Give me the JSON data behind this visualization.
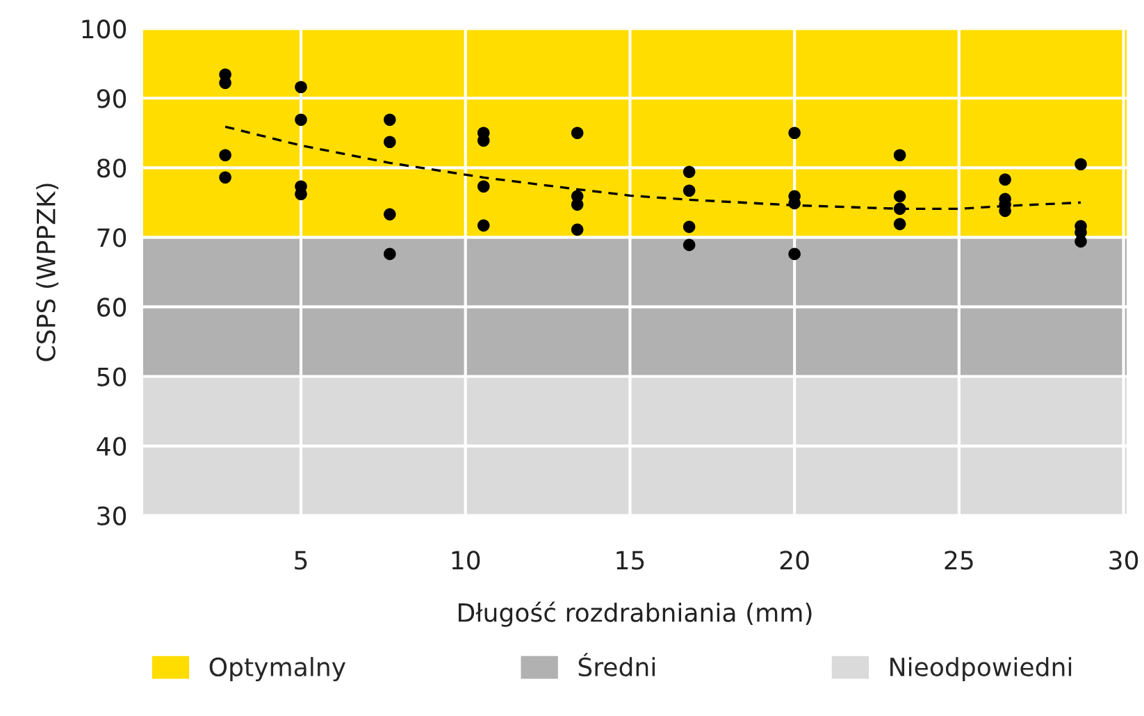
{
  "chart_data": {
    "type": "scatter",
    "xlabel": "Długość rozdrabniania (mm)",
    "ylabel": "CSPS (WPPZK)",
    "xlim": [
      0.2,
      30.1
    ],
    "xticks": [
      5,
      10,
      15,
      20,
      25,
      30
    ],
    "ylim": [
      30,
      100
    ],
    "yticks": [
      30,
      40,
      50,
      60,
      70,
      80,
      90,
      100
    ],
    "grid": true,
    "legend": "bottom",
    "marker": "circle",
    "bands": [
      {
        "axis": "y",
        "from": 70,
        "to": 100,
        "label": "Optymalny",
        "color": "#ffdd00"
      },
      {
        "axis": "y",
        "from": 50,
        "to": 70,
        "label": "Średni",
        "color": "#b1b1b1"
      },
      {
        "axis": "y",
        "from": 30,
        "to": 50,
        "label": "Nieodpowiedni",
        "color": "#dadada"
      }
    ],
    "series": [
      {
        "color": "#000000",
        "x": [
          2.7,
          2.7,
          2.7,
          2.7,
          5.0,
          5.0,
          5.0,
          5.0,
          7.7,
          7.7,
          7.7,
          7.7,
          10.55,
          10.55,
          10.55,
          10.55,
          13.4,
          13.4,
          13.4,
          13.4,
          16.8,
          16.8,
          16.8,
          16.8,
          20.0,
          20.0,
          20.0,
          20.0,
          23.2,
          23.2,
          23.2,
          23.2,
          26.4,
          26.4,
          26.4,
          26.4,
          28.7,
          28.7,
          28.7,
          28.7
        ],
        "values": [
          93.4,
          92.2,
          81.8,
          78.6,
          91.6,
          86.9,
          77.3,
          76.2,
          86.9,
          83.7,
          73.3,
          67.6,
          85.0,
          83.9,
          77.3,
          71.7,
          85.0,
          75.9,
          74.7,
          71.1,
          79.4,
          76.7,
          71.5,
          68.9,
          85.0,
          75.9,
          74.9,
          67.6,
          81.8,
          75.9,
          74.1,
          71.9,
          78.3,
          75.5,
          74.7,
          73.8,
          80.5,
          71.6,
          70.7,
          69.4
        ]
      },
      {
        "type": "line",
        "color": "#000000",
        "line_style": "dashed",
        "marker": "none",
        "x": [
          2.7,
          5.0,
          7.7,
          10.55,
          13.4,
          15.0,
          16.8,
          20.0,
          23.2,
          25.0,
          26.4,
          28.7
        ],
        "values": [
          85.9,
          83.2,
          80.7,
          78.6,
          76.9,
          76.0,
          75.4,
          74.6,
          74.1,
          74.1,
          74.5,
          75.0
        ]
      }
    ]
  }
}
